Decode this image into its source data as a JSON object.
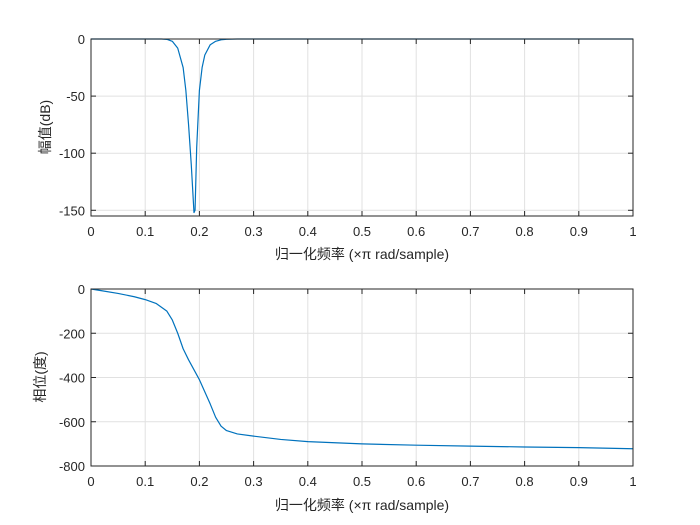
{
  "figure": {
    "background": "#ffffff"
  },
  "chart_data": [
    {
      "type": "line",
      "xlabel": "归一化频率 (×π rad/sample)",
      "ylabel": "幅值(dB)",
      "xlim": [
        0,
        1
      ],
      "ylim": [
        -155,
        0
      ],
      "xticks": [
        0,
        0.1,
        0.2,
        0.3,
        0.4,
        0.5,
        0.6,
        0.7,
        0.8,
        0.9,
        1
      ],
      "yticks": [
        0,
        -50,
        -100,
        -150
      ],
      "grid": true,
      "line_color": "#0072bd",
      "series": [
        {
          "x": [
            0,
            0.1,
            0.13,
            0.14,
            0.15,
            0.16,
            0.17,
            0.175,
            0.18,
            0.185,
            0.19,
            0.192,
            0.195,
            0.2,
            0.205,
            0.21,
            0.22,
            0.23,
            0.24,
            0.25,
            0.27,
            0.3,
            0.5,
            0.7,
            1
          ],
          "values": [
            0,
            0,
            0,
            -0.3,
            -2,
            -8,
            -25,
            -45,
            -75,
            -110,
            -152,
            -150,
            -95,
            -45,
            -25,
            -14,
            -5,
            -2,
            -0.7,
            -0.2,
            0,
            0,
            0,
            0,
            0
          ]
        }
      ]
    },
    {
      "type": "line",
      "xlabel": "归一化频率 (×π rad/sample)",
      "ylabel": "相位(度)",
      "xlim": [
        0,
        1
      ],
      "ylim": [
        -800,
        0
      ],
      "xticks": [
        0,
        0.1,
        0.2,
        0.3,
        0.4,
        0.5,
        0.6,
        0.7,
        0.8,
        0.9,
        1
      ],
      "yticks": [
        0,
        -200,
        -400,
        -600,
        -800
      ],
      "grid": true,
      "line_color": "#0072bd",
      "series": [
        {
          "x": [
            0,
            0.02,
            0.05,
            0.08,
            0.1,
            0.12,
            0.14,
            0.15,
            0.16,
            0.17,
            0.18,
            0.2,
            0.22,
            0.23,
            0.24,
            0.25,
            0.27,
            0.3,
            0.35,
            0.4,
            0.5,
            0.6,
            0.7,
            0.8,
            0.9,
            1
          ],
          "values": [
            0,
            -8,
            -20,
            -35,
            -48,
            -65,
            -100,
            -140,
            -200,
            -270,
            -320,
            -410,
            -520,
            -580,
            -620,
            -640,
            -655,
            -665,
            -680,
            -690,
            -700,
            -706,
            -710,
            -714,
            -717,
            -722
          ]
        }
      ]
    }
  ]
}
